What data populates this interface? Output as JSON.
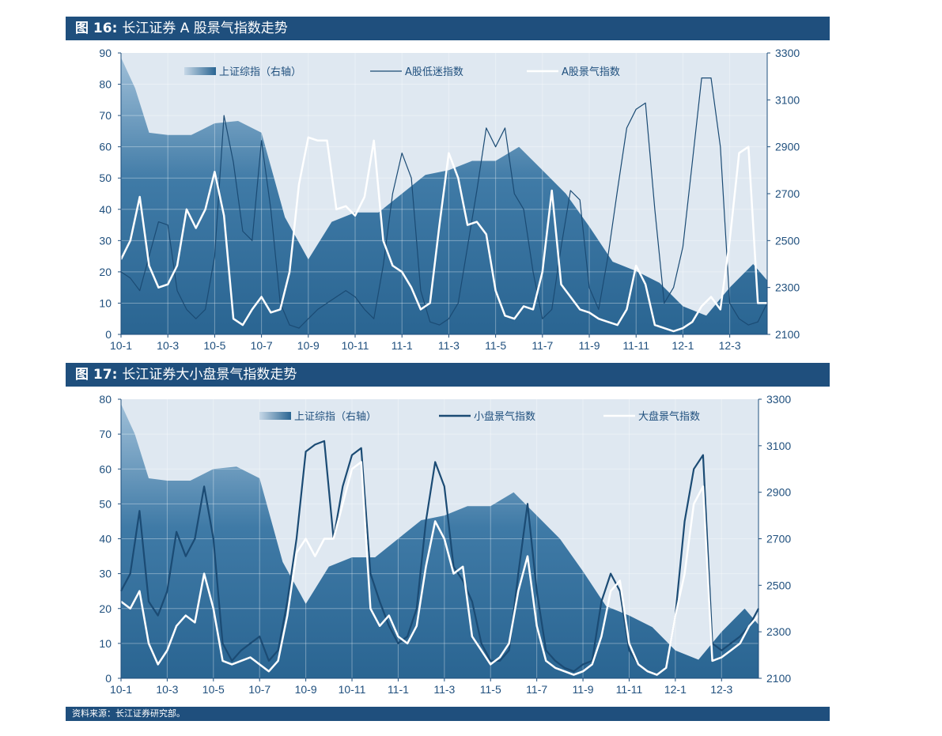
{
  "figures": [
    {
      "number": "图 16:",
      "title": "长江证券 A 股景气指数走势"
    },
    {
      "number": "图 17:",
      "title": "长江证券大小盘景气指数走势"
    }
  ],
  "source": "资料来源：长江证券研究部。",
  "colors": {
    "header_bg": "#1f4f7d",
    "plot_bg": "#dfe8f1",
    "area_fill": "#2f6d9b",
    "dark_line": "#1b4b74",
    "white_line": "#ffffff",
    "tick_text": "#1f4f7d"
  },
  "chart_data": [
    {
      "type": "line",
      "x_tick_labels": [
        "10-1",
        "10-3",
        "10-5",
        "10-7",
        "10-9",
        "10-11",
        "11-1",
        "11-3",
        "11-5",
        "11-7",
        "11-9",
        "11-11",
        "12-1",
        "12-3"
      ],
      "y_left": {
        "range": [
          0,
          90
        ],
        "ticks": [
          0,
          10,
          20,
          30,
          40,
          50,
          60,
          70,
          80,
          90
        ]
      },
      "y_right": {
        "range": [
          2100,
          3300
        ],
        "ticks": [
          2100,
          2300,
          2500,
          2700,
          2900,
          3100,
          3300
        ]
      },
      "legend": [
        "上证综指（右轴）",
        "A股低迷指数",
        "A股景气指数"
      ],
      "grid": true,
      "series": [
        {
          "name": "上证综指（右轴）",
          "axis": "right",
          "style": "area",
          "x": [
            0,
            0.3,
            0.6,
            1,
            1.5,
            2,
            2.5,
            3,
            3.5,
            4,
            4.5,
            5,
            5.5,
            6,
            6.5,
            7,
            7.5,
            8,
            8.5,
            9,
            9.5,
            10,
            10.5,
            11,
            11.5,
            12,
            12.5,
            13,
            13.5,
            13.8
          ],
          "values": [
            3280,
            3150,
            2960,
            2950,
            2950,
            3000,
            3010,
            2960,
            2600,
            2420,
            2580,
            2620,
            2620,
            2700,
            2780,
            2800,
            2840,
            2840,
            2900,
            2800,
            2700,
            2560,
            2410,
            2370,
            2320,
            2220,
            2180,
            2300,
            2400,
            2330
          ]
        },
        {
          "name": "A股低迷指数",
          "axis": "left",
          "style": "thin-line",
          "x": [
            0,
            0.2,
            0.4,
            0.6,
            0.8,
            1,
            1.2,
            1.4,
            1.6,
            1.8,
            2,
            2.2,
            2.4,
            2.6,
            2.8,
            3,
            3.2,
            3.4,
            3.6,
            3.8,
            4,
            4.2,
            4.4,
            4.6,
            4.8,
            5,
            5.2,
            5.4,
            5.6,
            5.8,
            6,
            6.2,
            6.4,
            6.6,
            6.8,
            7,
            7.2,
            7.4,
            7.6,
            7.8,
            8,
            8.2,
            8.4,
            8.6,
            8.8,
            9,
            9.2,
            9.4,
            9.6,
            9.8,
            10,
            10.2,
            10.4,
            10.6,
            10.8,
            11,
            11.2,
            11.4,
            11.6,
            11.8,
            12,
            12.2,
            12.4,
            12.6,
            12.8,
            13,
            13.2,
            13.4,
            13.6,
            13.8
          ],
          "values": [
            20,
            18,
            14,
            25,
            36,
            35,
            14,
            8,
            5,
            8,
            25,
            70,
            55,
            33,
            30,
            62,
            40,
            10,
            3,
            2,
            5,
            8,
            10,
            12,
            14,
            12,
            8,
            5,
            22,
            45,
            58,
            50,
            14,
            4,
            3,
            5,
            10,
            28,
            46,
            66,
            60,
            66,
            45,
            40,
            20,
            5,
            8,
            28,
            46,
            43,
            15,
            8,
            25,
            46,
            66,
            72,
            74,
            40,
            10,
            15,
            28,
            55,
            82,
            82,
            60,
            10,
            5,
            3,
            4,
            10
          ]
        },
        {
          "name": "A股景气指数",
          "axis": "left",
          "style": "white-line",
          "x": [
            0,
            0.2,
            0.4,
            0.6,
            0.8,
            1,
            1.2,
            1.4,
            1.6,
            1.8,
            2,
            2.2,
            2.4,
            2.6,
            2.8,
            3,
            3.2,
            3.4,
            3.6,
            3.8,
            4,
            4.2,
            4.4,
            4.6,
            4.8,
            5,
            5.2,
            5.4,
            5.6,
            5.8,
            6,
            6.2,
            6.4,
            6.6,
            6.8,
            7,
            7.2,
            7.4,
            7.6,
            7.8,
            8,
            8.2,
            8.4,
            8.6,
            8.8,
            9,
            9.2,
            9.4,
            9.6,
            9.8,
            10,
            10.2,
            10.4,
            10.6,
            10.8,
            11,
            11.2,
            11.4,
            11.6,
            11.8,
            12,
            12.2,
            12.4,
            12.6,
            12.8,
            13,
            13.2,
            13.4,
            13.6,
            13.8
          ],
          "values": [
            24,
            30,
            44,
            22,
            15,
            16,
            22,
            40,
            34,
            40,
            52,
            38,
            5,
            3,
            8,
            12,
            7,
            8,
            20,
            48,
            63,
            62,
            62,
            40,
            41,
            38,
            44,
            62,
            30,
            22,
            20,
            15,
            8,
            10,
            35,
            58,
            50,
            35,
            36,
            32,
            14,
            6,
            5,
            9,
            8,
            20,
            46,
            16,
            12,
            8,
            7,
            5,
            4,
            3,
            8,
            22,
            16,
            3,
            2,
            1,
            2,
            4,
            9,
            12,
            8,
            30,
            58,
            60,
            10,
            10
          ]
        }
      ]
    },
    {
      "type": "line",
      "x_tick_labels": [
        "10-1",
        "10-3",
        "10-5",
        "10-7",
        "10-9",
        "10-11",
        "11-1",
        "11-3",
        "11-5",
        "11-7",
        "11-9",
        "11-11",
        "12-1",
        "12-3"
      ],
      "y_left": {
        "range": [
          0,
          80
        ],
        "ticks": [
          0,
          10,
          20,
          30,
          40,
          50,
          60,
          70,
          80
        ]
      },
      "y_right": {
        "range": [
          2100,
          3300
        ],
        "ticks": [
          2100,
          2300,
          2500,
          2700,
          2900,
          3100,
          3300
        ]
      },
      "legend": [
        "上证综指（右轴）",
        "小盘景气指数",
        "大盘景气指数"
      ],
      "grid": true,
      "series": [
        {
          "name": "上证综指（右轴）",
          "axis": "right",
          "style": "area",
          "x": [
            0,
            0.3,
            0.6,
            1,
            1.5,
            2,
            2.5,
            3,
            3.5,
            4,
            4.5,
            5,
            5.5,
            6,
            6.5,
            7,
            7.5,
            8,
            8.5,
            9,
            9.5,
            10,
            10.5,
            11,
            11.5,
            12,
            12.5,
            13,
            13.5,
            13.8
          ],
          "values": [
            3280,
            3150,
            2960,
            2950,
            2950,
            3000,
            3010,
            2960,
            2600,
            2420,
            2580,
            2620,
            2620,
            2700,
            2780,
            2800,
            2840,
            2840,
            2900,
            2800,
            2700,
            2560,
            2410,
            2370,
            2320,
            2220,
            2180,
            2300,
            2400,
            2330
          ]
        },
        {
          "name": "小盘景气指数",
          "axis": "left",
          "style": "dark-line",
          "x": [
            0,
            0.2,
            0.4,
            0.6,
            0.8,
            1,
            1.2,
            1.4,
            1.6,
            1.8,
            2,
            2.2,
            2.4,
            2.6,
            2.8,
            3,
            3.2,
            3.4,
            3.6,
            3.8,
            4,
            4.2,
            4.4,
            4.6,
            4.8,
            5,
            5.2,
            5.4,
            5.6,
            5.8,
            6,
            6.2,
            6.4,
            6.6,
            6.8,
            7,
            7.2,
            7.4,
            7.6,
            7.8,
            8,
            8.2,
            8.4,
            8.6,
            8.8,
            9,
            9.2,
            9.4,
            9.6,
            9.8,
            10,
            10.2,
            10.4,
            10.6,
            10.8,
            11,
            11.2,
            11.4,
            11.6,
            11.8,
            12,
            12.2,
            12.4,
            12.6,
            12.8,
            13,
            13.2,
            13.4,
            13.6,
            13.8
          ],
          "values": [
            25,
            30,
            48,
            22,
            18,
            25,
            42,
            35,
            40,
            55,
            40,
            10,
            5,
            8,
            10,
            12,
            5,
            8,
            22,
            40,
            65,
            67,
            68,
            40,
            55,
            64,
            66,
            30,
            22,
            15,
            10,
            12,
            20,
            45,
            62,
            55,
            32,
            28,
            22,
            10,
            5,
            5,
            8,
            30,
            50,
            25,
            8,
            5,
            3,
            2,
            4,
            5,
            22,
            30,
            25,
            8,
            4,
            2,
            1,
            3,
            18,
            45,
            60,
            64,
            10,
            8,
            10,
            12,
            15,
            20
          ]
        },
        {
          "name": "大盘景气指数",
          "axis": "left",
          "style": "white-line",
          "x": [
            0,
            0.2,
            0.4,
            0.6,
            0.8,
            1,
            1.2,
            1.4,
            1.6,
            1.8,
            2,
            2.2,
            2.4,
            2.6,
            2.8,
            3,
            3.2,
            3.4,
            3.6,
            3.8,
            4,
            4.2,
            4.4,
            4.6,
            4.8,
            5,
            5.2,
            5.4,
            5.6,
            5.8,
            6,
            6.2,
            6.4,
            6.6,
            6.8,
            7,
            7.2,
            7.4,
            7.6,
            7.8,
            8,
            8.2,
            8.4,
            8.6,
            8.8,
            9,
            9.2,
            9.4,
            9.6,
            9.8,
            10,
            10.2,
            10.4,
            10.6,
            10.8,
            11,
            11.2,
            11.4,
            11.6,
            11.8,
            12,
            12.2,
            12.4,
            12.6,
            12.8,
            13,
            13.2,
            13.4,
            13.6,
            13.8
          ],
          "values": [
            22,
            20,
            25,
            10,
            4,
            8,
            15,
            18,
            16,
            30,
            20,
            5,
            4,
            5,
            6,
            4,
            2,
            5,
            18,
            36,
            40,
            35,
            40,
            40,
            50,
            60,
            62,
            20,
            15,
            18,
            12,
            10,
            15,
            32,
            45,
            40,
            30,
            32,
            12,
            8,
            4,
            6,
            10,
            25,
            35,
            15,
            5,
            3,
            2,
            1,
            2,
            4,
            12,
            25,
            28,
            10,
            4,
            2,
            1,
            3,
            18,
            30,
            50,
            55,
            5,
            6,
            8,
            10,
            15,
            18
          ]
        }
      ]
    }
  ]
}
